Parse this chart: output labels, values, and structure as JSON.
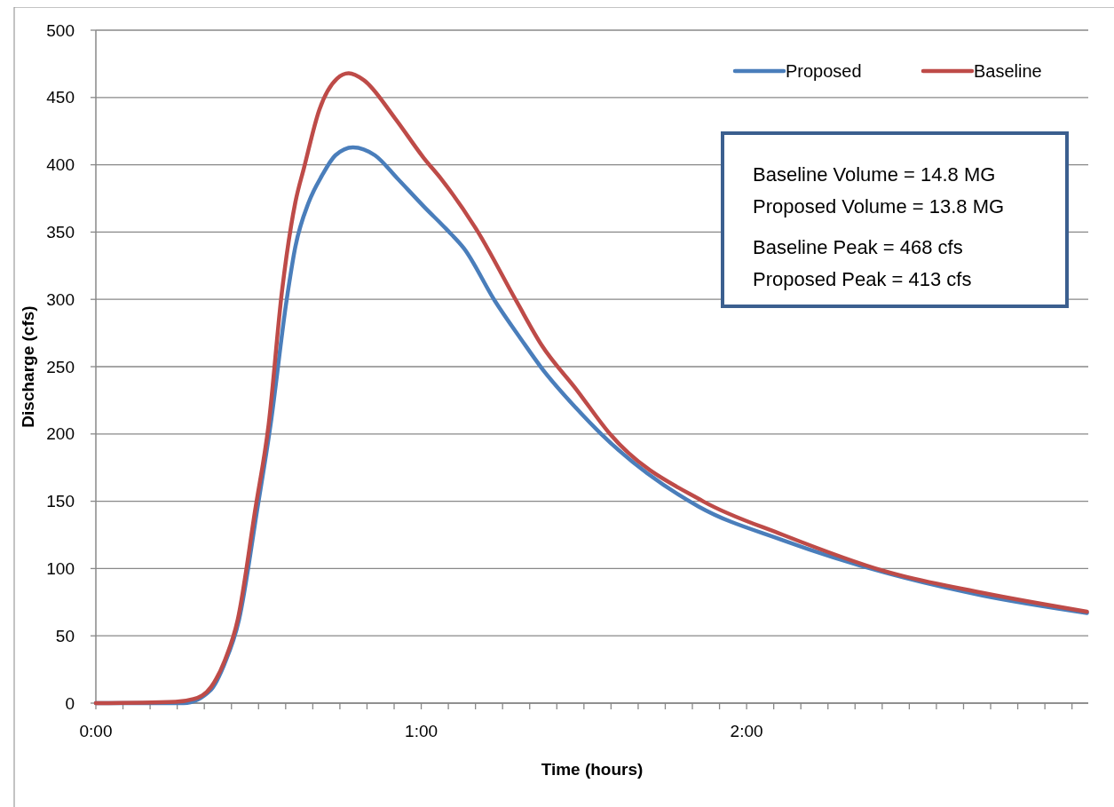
{
  "chart_data": {
    "type": "line",
    "xlabel": "Time (hours)",
    "ylabel": "Discharge (cfs)",
    "xlim": [
      0,
      3.05
    ],
    "ylim": [
      0,
      500
    ],
    "xticks": [
      {
        "value": 0,
        "label": "0:00"
      },
      {
        "value": 0.0833,
        "label": null
      },
      {
        "value": 0.1667,
        "label": null
      },
      {
        "value": 0.25,
        "label": null
      },
      {
        "value": 0.3333,
        "label": null
      },
      {
        "value": 0.4167,
        "label": null
      },
      {
        "value": 0.5,
        "label": null
      },
      {
        "value": 0.5833,
        "label": null
      },
      {
        "value": 0.6667,
        "label": null
      },
      {
        "value": 0.75,
        "label": null
      },
      {
        "value": 0.8333,
        "label": null
      },
      {
        "value": 0.9167,
        "label": null
      },
      {
        "value": 1,
        "label": "1:00"
      },
      {
        "value": 1.0833,
        "label": null
      },
      {
        "value": 1.1667,
        "label": null
      },
      {
        "value": 1.25,
        "label": null
      },
      {
        "value": 1.3333,
        "label": null
      },
      {
        "value": 1.4167,
        "label": null
      },
      {
        "value": 1.5,
        "label": null
      },
      {
        "value": 1.5833,
        "label": null
      },
      {
        "value": 1.6667,
        "label": null
      },
      {
        "value": 1.75,
        "label": null
      },
      {
        "value": 1.8333,
        "label": null
      },
      {
        "value": 1.9167,
        "label": null
      },
      {
        "value": 2,
        "label": "2:00"
      },
      {
        "value": 2.0833,
        "label": null
      },
      {
        "value": 2.1667,
        "label": null
      },
      {
        "value": 2.25,
        "label": null
      },
      {
        "value": 2.3333,
        "label": null
      },
      {
        "value": 2.4167,
        "label": null
      },
      {
        "value": 2.5,
        "label": null
      },
      {
        "value": 2.5833,
        "label": null
      },
      {
        "value": 2.6667,
        "label": null
      },
      {
        "value": 2.75,
        "label": null
      },
      {
        "value": 2.8333,
        "label": null
      },
      {
        "value": 2.9167,
        "label": null
      },
      {
        "value": 3,
        "label": null
      }
    ],
    "yticks": [
      0,
      50,
      100,
      150,
      200,
      250,
      300,
      350,
      400,
      450,
      500
    ],
    "grid": "y",
    "legend": "top right",
    "line_style": "solid",
    "annotations": [
      "Baseline Volume = 14.8 MG",
      "Proposed Volume = 13.8 MG",
      "Baseline Peak = 468 cfs",
      "Proposed Peak = 413 cfs"
    ],
    "series": [
      {
        "name": "Proposed",
        "color": "#4a7ebb",
        "x": [
          0,
          0.27,
          0.354,
          0.395,
          0.44,
          0.496,
          0.537,
          0.586,
          0.613,
          0.654,
          0.695,
          0.736,
          0.79,
          0.858,
          0.926,
          1.008,
          1.082,
          1.131,
          1.226,
          1.308,
          1.37,
          1.477,
          1.553,
          1.853,
          2.112,
          2.425,
          2.725,
          3.046
        ],
        "values": [
          0,
          0,
          10,
          29,
          62,
          144,
          207,
          299,
          339,
          372,
          392,
          407,
          413,
          407,
          390,
          369,
          351,
          338,
          299,
          270,
          249,
          219,
          200,
          146,
          121,
          97,
          80,
          67
        ]
      },
      {
        "name": "Baseline",
        "color": "#be4b48",
        "x": [
          0,
          0.245,
          0.3,
          0.354,
          0.395,
          0.436,
          0.49,
          0.531,
          0.572,
          0.613,
          0.64,
          0.687,
          0.741,
          0.777,
          0.823,
          0.918,
          1.008,
          1.063,
          1.172,
          1.294,
          1.37,
          1.477,
          1.58,
          1.866,
          2.112,
          2.425,
          2.725,
          3.046
        ],
        "values": [
          0,
          1,
          3,
          12,
          31,
          62,
          144,
          207,
          306,
          372,
          398,
          441,
          464,
          468,
          463,
          435,
          405,
          389,
          351,
          298,
          266,
          233,
          200,
          150,
          125,
          98,
          82,
          68
        ]
      }
    ]
  }
}
